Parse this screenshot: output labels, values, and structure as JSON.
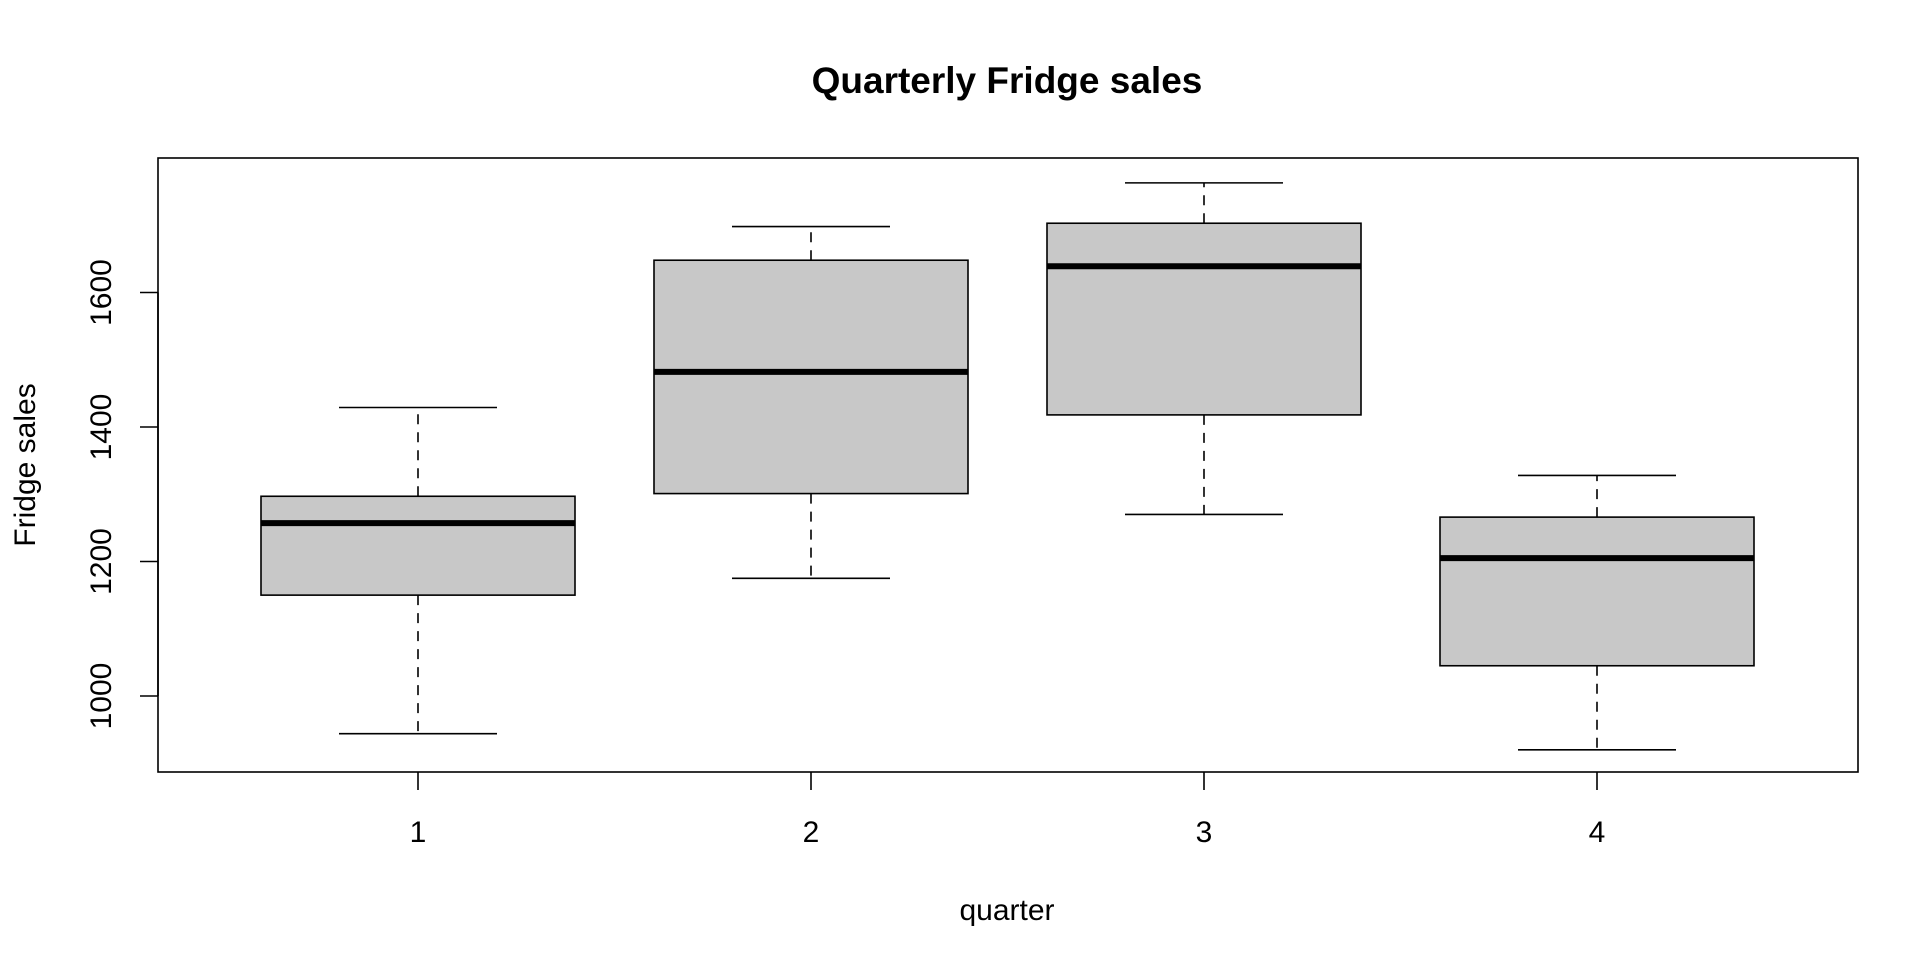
{
  "chart_data": {
    "type": "boxplot",
    "title": "Quarterly Fridge sales",
    "xlabel": "quarter",
    "ylabel": "Fridge sales",
    "ylim": [
      887,
      1800
    ],
    "yticks": [
      1000,
      1200,
      1400,
      1600
    ],
    "grid": false,
    "legend": "none",
    "colors": {
      "box_fill": "#c8c8c8",
      "stroke": "#000000"
    },
    "boxes": [
      {
        "category": "1",
        "min": 944,
        "q1": 1150,
        "median": 1257,
        "q3": 1297,
        "max": 1429
      },
      {
        "category": "2",
        "min": 1175,
        "q1": 1301,
        "median": 1482,
        "q3": 1648,
        "max": 1698
      },
      {
        "category": "3",
        "min": 1270,
        "q1": 1418,
        "median": 1639,
        "q3": 1703,
        "max": 1763
      },
      {
        "category": "4",
        "min": 920,
        "q1": 1045,
        "median": 1205,
        "q3": 1266,
        "max": 1328
      }
    ]
  }
}
